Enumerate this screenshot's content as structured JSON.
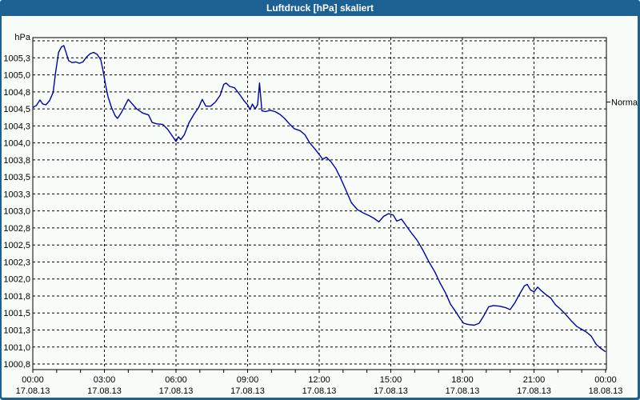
{
  "window": {
    "title": "Luftdruck [hPa] skaliert",
    "titlebar_color": "#1d6193",
    "border_color": "#1d6193",
    "background_color": "#f9fdf9"
  },
  "chart_data": {
    "type": "line",
    "title": "Luftdruck [hPa] skaliert",
    "grid": "dashed",
    "plot_border_color": "#000000",
    "gridline_color": "#000000",
    "y_axis": {
      "unit_label": "hPa",
      "top_gridline_value": 1005.5,
      "ylim": [
        1000.75,
        1005.5
      ],
      "ticks": [
        {
          "label": "1005,3",
          "value": 1005.25
        },
        {
          "label": "1005,0",
          "value": 1005.0
        },
        {
          "label": "1004,8",
          "value": 1004.75
        },
        {
          "label": "1004,5",
          "value": 1004.5
        },
        {
          "label": "1004,3",
          "value": 1004.25
        },
        {
          "label": "1004,0",
          "value": 1004.0
        },
        {
          "label": "1003,8",
          "value": 1003.75
        },
        {
          "label": "1003,5",
          "value": 1003.5
        },
        {
          "label": "1003,3",
          "value": 1003.25
        },
        {
          "label": "1003,0",
          "value": 1003.0
        },
        {
          "label": "1002,8",
          "value": 1002.75
        },
        {
          "label": "1002,5",
          "value": 1002.5
        },
        {
          "label": "1002,3",
          "value": 1002.25
        },
        {
          "label": "1002,0",
          "value": 1002.0
        },
        {
          "label": "1001,8",
          "value": 1001.75
        },
        {
          "label": "1001,5",
          "value": 1001.5
        },
        {
          "label": "1001,3",
          "value": 1001.25
        },
        {
          "label": "1001,0",
          "value": 1001.0
        },
        {
          "label": "1000,8",
          "value": 1000.75
        }
      ]
    },
    "x_axis": {
      "xlim_hours": [
        0,
        24
      ],
      "minor_tick_every_hours": 1,
      "ticks": [
        {
          "time": "00:00",
          "date": "17.08.13",
          "hours": 0
        },
        {
          "time": "03:00",
          "date": "17.08.13",
          "hours": 3
        },
        {
          "time": "06:00",
          "date": "17.08.13",
          "hours": 6
        },
        {
          "time": "09:00",
          "date": "17.08.13",
          "hours": 9
        },
        {
          "time": "12:00",
          "date": "17.08.13",
          "hours": 12
        },
        {
          "time": "15:00",
          "date": "17.08.13",
          "hours": 15
        },
        {
          "time": "18:00",
          "date": "17.08.13",
          "hours": 18
        },
        {
          "time": "21:00",
          "date": "17.08.13",
          "hours": 21
        },
        {
          "time": "00:00",
          "date": "18.08.13",
          "hours": 24
        }
      ]
    },
    "right_annotation": {
      "label": "Normal",
      "value": 1004.6
    },
    "series": [
      {
        "name": "Luftdruck [hPa]",
        "color": "#0000aa",
        "points_hours_hpa": [
          [
            0.0,
            1004.52
          ],
          [
            0.15,
            1004.55
          ],
          [
            0.3,
            1004.63
          ],
          [
            0.42,
            1004.57
          ],
          [
            0.55,
            1004.56
          ],
          [
            0.7,
            1004.62
          ],
          [
            0.85,
            1004.74
          ],
          [
            0.95,
            1005.02
          ],
          [
            1.08,
            1005.33
          ],
          [
            1.2,
            1005.41
          ],
          [
            1.3,
            1005.43
          ],
          [
            1.4,
            1005.32
          ],
          [
            1.5,
            1005.21
          ],
          [
            1.65,
            1005.18
          ],
          [
            1.8,
            1005.19
          ],
          [
            1.95,
            1005.17
          ],
          [
            2.1,
            1005.19
          ],
          [
            2.25,
            1005.26
          ],
          [
            2.4,
            1005.31
          ],
          [
            2.55,
            1005.33
          ],
          [
            2.7,
            1005.3
          ],
          [
            2.85,
            1005.22
          ],
          [
            2.95,
            1005.05
          ],
          [
            3.05,
            1004.85
          ],
          [
            3.15,
            1004.68
          ],
          [
            3.3,
            1004.52
          ],
          [
            3.45,
            1004.4
          ],
          [
            3.55,
            1004.36
          ],
          [
            3.7,
            1004.44
          ],
          [
            3.85,
            1004.54
          ],
          [
            4.0,
            1004.64
          ],
          [
            4.15,
            1004.58
          ],
          [
            4.35,
            1004.5
          ],
          [
            4.6,
            1004.44
          ],
          [
            4.85,
            1004.41
          ],
          [
            5.0,
            1004.3
          ],
          [
            5.2,
            1004.28
          ],
          [
            5.45,
            1004.27
          ],
          [
            5.65,
            1004.2
          ],
          [
            5.85,
            1004.1
          ],
          [
            6.0,
            1004.02
          ],
          [
            6.1,
            1004.09
          ],
          [
            6.2,
            1004.05
          ],
          [
            6.35,
            1004.12
          ],
          [
            6.55,
            1004.3
          ],
          [
            6.75,
            1004.42
          ],
          [
            6.95,
            1004.52
          ],
          [
            7.1,
            1004.64
          ],
          [
            7.25,
            1004.54
          ],
          [
            7.45,
            1004.54
          ],
          [
            7.65,
            1004.6
          ],
          [
            7.85,
            1004.7
          ],
          [
            8.0,
            1004.86
          ],
          [
            8.1,
            1004.88
          ],
          [
            8.25,
            1004.83
          ],
          [
            8.45,
            1004.81
          ],
          [
            8.65,
            1004.72
          ],
          [
            8.85,
            1004.62
          ],
          [
            9.0,
            1004.56
          ],
          [
            9.1,
            1004.49
          ],
          [
            9.2,
            1004.57
          ],
          [
            9.32,
            1004.5
          ],
          [
            9.42,
            1004.56
          ],
          [
            9.5,
            1004.88
          ],
          [
            9.6,
            1004.47
          ],
          [
            9.75,
            1004.46
          ],
          [
            9.95,
            1004.48
          ],
          [
            10.15,
            1004.46
          ],
          [
            10.35,
            1004.42
          ],
          [
            10.55,
            1004.36
          ],
          [
            10.75,
            1004.28
          ],
          [
            10.95,
            1004.21
          ],
          [
            11.2,
            1004.18
          ],
          [
            11.4,
            1004.12
          ],
          [
            11.6,
            1004.0
          ],
          [
            11.8,
            1003.92
          ],
          [
            12.0,
            1003.83
          ],
          [
            12.15,
            1003.76
          ],
          [
            12.3,
            1003.79
          ],
          [
            12.5,
            1003.72
          ],
          [
            12.7,
            1003.62
          ],
          [
            12.9,
            1003.48
          ],
          [
            13.1,
            1003.32
          ],
          [
            13.35,
            1003.12
          ],
          [
            13.6,
            1003.02
          ],
          [
            13.85,
            1002.97
          ],
          [
            14.1,
            1002.93
          ],
          [
            14.3,
            1002.89
          ],
          [
            14.5,
            1002.84
          ],
          [
            14.7,
            1002.92
          ],
          [
            14.9,
            1002.96
          ],
          [
            15.1,
            1002.94
          ],
          [
            15.25,
            1002.85
          ],
          [
            15.45,
            1002.88
          ],
          [
            15.65,
            1002.78
          ],
          [
            15.9,
            1002.66
          ],
          [
            16.1,
            1002.57
          ],
          [
            16.35,
            1002.42
          ],
          [
            16.6,
            1002.25
          ],
          [
            16.85,
            1002.1
          ],
          [
            17.05,
            1001.95
          ],
          [
            17.3,
            1001.79
          ],
          [
            17.5,
            1001.63
          ],
          [
            17.7,
            1001.53
          ],
          [
            17.9,
            1001.42
          ],
          [
            18.05,
            1001.35
          ],
          [
            18.25,
            1001.33
          ],
          [
            18.5,
            1001.32
          ],
          [
            18.7,
            1001.35
          ],
          [
            18.9,
            1001.46
          ],
          [
            19.1,
            1001.59
          ],
          [
            19.3,
            1001.61
          ],
          [
            19.55,
            1001.6
          ],
          [
            19.8,
            1001.58
          ],
          [
            20.0,
            1001.55
          ],
          [
            20.2,
            1001.65
          ],
          [
            20.4,
            1001.78
          ],
          [
            20.6,
            1001.9
          ],
          [
            20.72,
            1001.92
          ],
          [
            20.85,
            1001.84
          ],
          [
            21.0,
            1001.81
          ],
          [
            21.15,
            1001.88
          ],
          [
            21.3,
            1001.83
          ],
          [
            21.5,
            1001.77
          ],
          [
            21.7,
            1001.72
          ],
          [
            21.9,
            1001.62
          ],
          [
            22.1,
            1001.56
          ],
          [
            22.3,
            1001.49
          ],
          [
            22.55,
            1001.39
          ],
          [
            22.8,
            1001.3
          ],
          [
            23.0,
            1001.26
          ],
          [
            23.2,
            1001.22
          ],
          [
            23.4,
            1001.16
          ],
          [
            23.6,
            1001.04
          ],
          [
            23.8,
            1000.98
          ],
          [
            24.0,
            1000.93
          ]
        ]
      }
    ]
  }
}
